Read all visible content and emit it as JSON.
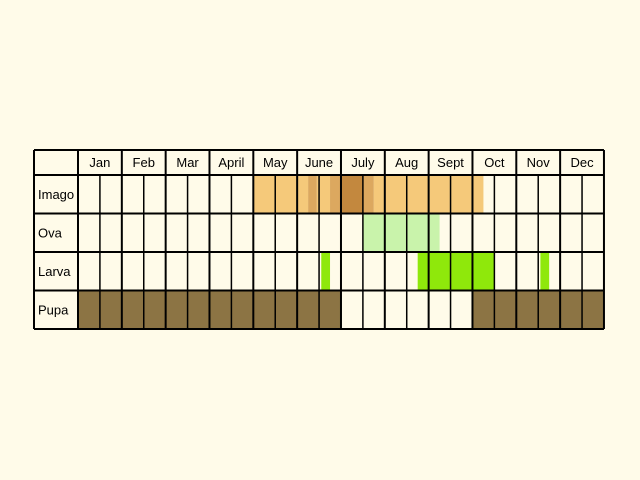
{
  "colors": {
    "background": "#fffbe9",
    "cell": "#fffbe9",
    "grid": "#000000",
    "imago_light": "#f5c97a",
    "imago_mid": "#dca85f",
    "imago_dark": "#c3883e",
    "ova": "#c9f3ab",
    "larva": "#8fe80b",
    "pupa": "#8c7444"
  },
  "chart_data": {
    "type": "table",
    "title": "",
    "months": [
      "Jan",
      "Feb",
      "Mar",
      "April",
      "May",
      "June",
      "July",
      "Aug",
      "Sept",
      "Oct",
      "Nov",
      "Dec"
    ],
    "rows": [
      {
        "label": "Imago",
        "segments": [
          {
            "start": 4.0,
            "end": 5.25,
            "shade": "imago_light"
          },
          {
            "start": 5.25,
            "end": 5.45,
            "shade": "imago_mid"
          },
          {
            "start": 5.45,
            "end": 5.75,
            "shade": "imago_light"
          },
          {
            "start": 5.75,
            "end": 6.0,
            "shade": "imago_mid"
          },
          {
            "start": 6.0,
            "end": 6.5,
            "shade": "imago_dark"
          },
          {
            "start": 6.5,
            "end": 6.75,
            "shade": "imago_mid"
          },
          {
            "start": 6.75,
            "end": 9.25,
            "shade": "imago_light"
          }
        ]
      },
      {
        "label": "Ova",
        "segments": [
          {
            "start": 6.5,
            "end": 8.25,
            "shade": "ova"
          }
        ]
      },
      {
        "label": "Larva",
        "segments": [
          {
            "start": 5.55,
            "end": 5.75,
            "shade": "larva"
          },
          {
            "start": 7.75,
            "end": 9.5,
            "shade": "larva"
          },
          {
            "start": 10.55,
            "end": 10.75,
            "shade": "larva"
          }
        ]
      },
      {
        "label": "Pupa",
        "segments": [
          {
            "start": 0.0,
            "end": 6.0,
            "shade": "pupa"
          },
          {
            "start": 9.0,
            "end": 12.0,
            "shade": "pupa"
          }
        ]
      }
    ]
  }
}
